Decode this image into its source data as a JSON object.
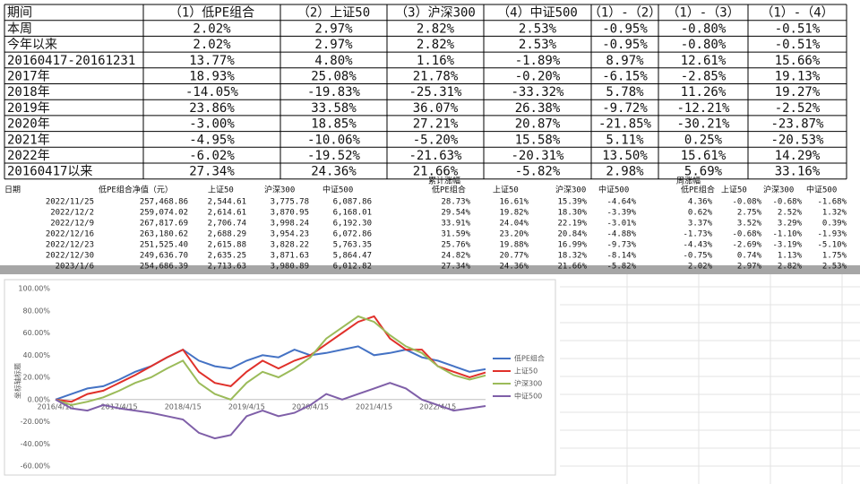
{
  "top_table": {
    "header": [
      "期间",
      "（1）低PE组合",
      "（2）上证50",
      "（3）沪深300",
      "（4）中证500",
      "（1）-（2）",
      "（1）-（3）",
      "（1）-（4）"
    ],
    "rows": [
      [
        "本周",
        "2.02%",
        "2.97%",
        "2.82%",
        "2.53%",
        "-0.95%",
        "-0.80%",
        "-0.51%"
      ],
      [
        "今年以来",
        "2.02%",
        "2.97%",
        "2.82%",
        "2.53%",
        "-0.95%",
        "-0.80%",
        "-0.51%"
      ],
      [
        "20160417-20161231",
        "13.77%",
        "4.80%",
        "1.16%",
        "-1.89%",
        "8.97%",
        "12.61%",
        "15.66%"
      ],
      [
        "2017年",
        "18.93%",
        "25.08%",
        "21.78%",
        "-0.20%",
        "-6.15%",
        "-2.85%",
        "19.13%"
      ],
      [
        "2018年",
        "-14.05%",
        "-19.83%",
        "-25.31%",
        "-33.32%",
        "5.78%",
        "11.26%",
        "19.27%"
      ],
      [
        "2019年",
        "23.86%",
        "33.58%",
        "36.07%",
        "26.38%",
        "-9.72%",
        "-12.21%",
        "-2.52%"
      ],
      [
        "2020年",
        "-3.00%",
        "18.85%",
        "27.21%",
        "20.87%",
        "-21.85%",
        "-30.21%",
        "-23.87%"
      ],
      [
        "2021年",
        "-4.95%",
        "-10.06%",
        "-5.20%",
        "15.58%",
        "5.11%",
        "0.25%",
        "-20.53%"
      ],
      [
        "2022年",
        "-6.02%",
        "-19.52%",
        "-21.63%",
        "-20.31%",
        "13.50%",
        "15.61%",
        "14.29%"
      ],
      [
        "20160417以来",
        "27.34%",
        "24.36%",
        "21.66%",
        "-5.82%",
        "2.98%",
        "5.69%",
        "33.16%"
      ]
    ]
  },
  "lower_table": {
    "groups": [
      "累计涨幅",
      "周涨幅"
    ],
    "header": [
      "日期",
      "低PE组合净值（元）",
      "上证50",
      "沪深300",
      "中证500",
      "低PE组合",
      "上证50",
      "沪深300",
      "中证500",
      "低PE组合",
      "上证50",
      "沪深300",
      "中证500"
    ],
    "rows": [
      [
        "2022/11/25",
        "257,468.86",
        "2,544.61",
        "3,775.78",
        "6,087.86",
        "28.73%",
        "16.61%",
        "15.39%",
        "-4.64%",
        "4.36%",
        "-0.08%",
        "-0.68%",
        "-1.68%"
      ],
      [
        "2022/12/2",
        "259,074.02",
        "2,614.61",
        "3,870.95",
        "6,168.01",
        "29.54%",
        "19.82%",
        "18.30%",
        "-3.39%",
        "0.62%",
        "2.75%",
        "2.52%",
        "1.32%"
      ],
      [
        "2022/12/9",
        "267,817.69",
        "2,706.74",
        "3,998.24",
        "6,192.30",
        "33.91%",
        "24.04%",
        "22.19%",
        "-3.01%",
        "3.37%",
        "3.52%",
        "3.29%",
        "0.39%"
      ],
      [
        "2022/12/16",
        "263,180.62",
        "2,688.29",
        "3,954.23",
        "6,072.86",
        "31.59%",
        "23.20%",
        "20.84%",
        "-4.88%",
        "-1.73%",
        "-0.68%",
        "-1.10%",
        "-1.93%"
      ],
      [
        "2022/12/23",
        "251,525.40",
        "2,615.88",
        "3,828.22",
        "5,763.35",
        "25.76%",
        "19.88%",
        "16.99%",
        "-9.73%",
        "-4.43%",
        "-2.69%",
        "-3.19%",
        "-5.10%"
      ],
      [
        "2022/12/30",
        "249,636.70",
        "2,635.25",
        "3,871.63",
        "5,864.47",
        "24.82%",
        "20.77%",
        "18.32%",
        "-8.14%",
        "-0.75%",
        "0.74%",
        "1.13%",
        "1.75%"
      ],
      [
        "2023/1/6",
        "254,686.39",
        "2,713.63",
        "3,980.89",
        "6,012.82",
        "27.34%",
        "24.36%",
        "21.66%",
        "-5.82%",
        "2.02%",
        "2.97%",
        "2.82%",
        "2.53%"
      ]
    ]
  },
  "chart_data": {
    "type": "line",
    "y_label": "坐标轴标题",
    "grid": false,
    "legend": "right",
    "categories": [
      "2016/4/15",
      null,
      null,
      null,
      "2017/4/15",
      null,
      null,
      null,
      "2018/4/15",
      null,
      null,
      null,
      "2019/4/15",
      null,
      null,
      null,
      "2020/4/15",
      null,
      null,
      null,
      "2021/4/15",
      null,
      null,
      null,
      "2022/4/15",
      null,
      null,
      null
    ],
    "ylim": [
      -60,
      100
    ],
    "yticks": [
      {
        "value": -60,
        "label": "-60.00%"
      },
      {
        "value": -40,
        "label": "-40.00%"
      },
      {
        "value": -20,
        "label": "-20.00%"
      },
      {
        "value": 0,
        "label": "0.00%"
      },
      {
        "value": 20,
        "label": "20.00%"
      },
      {
        "value": 40,
        "label": "40.00%"
      },
      {
        "value": 60,
        "label": "60.00%"
      },
      {
        "value": 80,
        "label": "80.00%"
      },
      {
        "value": 100,
        "label": "100.00%"
      }
    ],
    "series": [
      {
        "name": "低PE组合",
        "color": "#4472c4",
        "values": [
          0,
          5,
          10,
          12,
          18,
          25,
          30,
          38,
          45,
          35,
          30,
          28,
          35,
          40,
          38,
          45,
          40,
          42,
          45,
          48,
          40,
          42,
          45,
          38,
          35,
          30,
          25,
          27.34
        ]
      },
      {
        "name": "上证50",
        "color": "#e0302a",
        "values": [
          0,
          -2,
          5,
          8,
          15,
          22,
          30,
          38,
          45,
          25,
          15,
          12,
          25,
          35,
          28,
          35,
          40,
          50,
          60,
          70,
          75,
          55,
          45,
          45,
          30,
          25,
          20,
          24.36
        ]
      },
      {
        "name": "沪深300",
        "color": "#9bbb59",
        "values": [
          0,
          -5,
          -2,
          2,
          8,
          15,
          20,
          28,
          35,
          15,
          5,
          0,
          15,
          25,
          20,
          28,
          38,
          55,
          65,
          75,
          70,
          58,
          48,
          42,
          30,
          22,
          18,
          21.66
        ]
      },
      {
        "name": "中证500",
        "color": "#7f5fa8",
        "values": [
          0,
          -8,
          -10,
          -5,
          -8,
          -10,
          -12,
          -15,
          -18,
          -30,
          -35,
          -32,
          -15,
          -10,
          -15,
          -12,
          -5,
          5,
          0,
          5,
          10,
          15,
          10,
          0,
          -5,
          -10,
          -8,
          -5.82
        ]
      }
    ]
  }
}
